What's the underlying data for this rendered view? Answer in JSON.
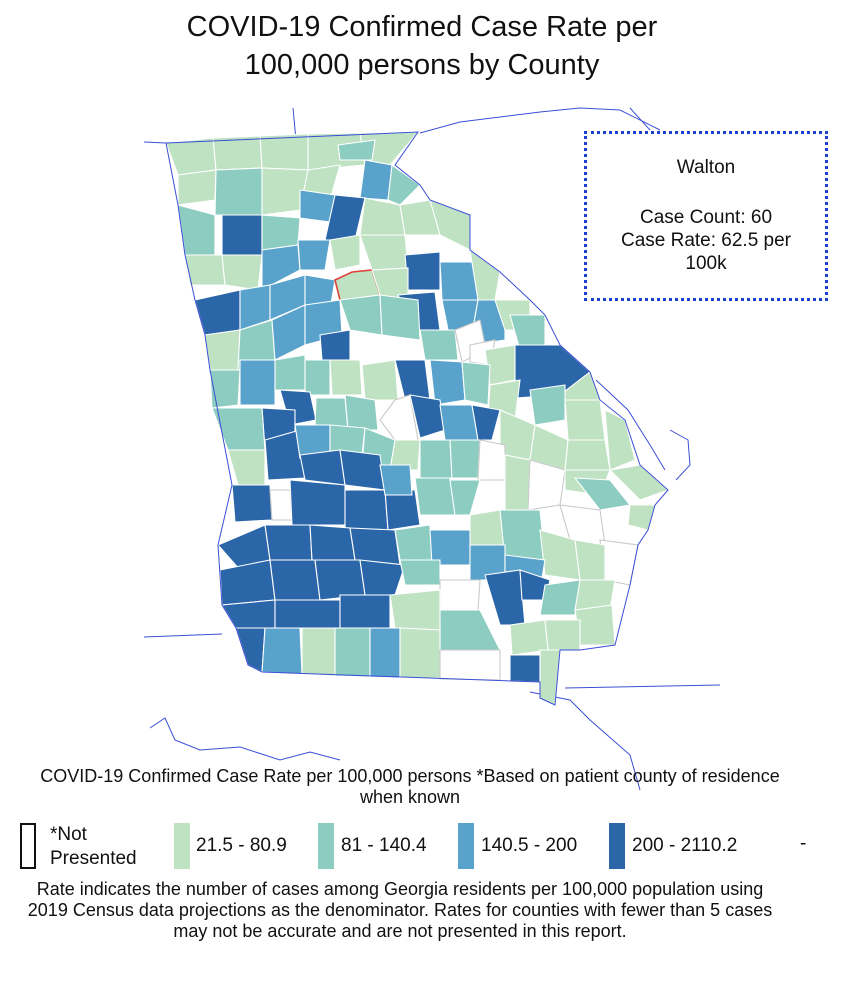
{
  "title_line1": "COVID-19 Confirmed Case Rate per",
  "title_line2": "100,000 persons by County",
  "tooltip": {
    "county": "Walton",
    "case_count": "Case Count: 60",
    "case_rate": "Case Rate: 62.5 per 100k"
  },
  "legend": {
    "title": "COVID-19 Confirmed Case Rate per 100,000 persons *Based on patient county of residence when known",
    "items": [
      {
        "label": "*Not Presented",
        "color": "#ffffff"
      },
      {
        "label": "21.5 - 80.9",
        "color": "#bfe2c3"
      },
      {
        "label": "81 - 140.4",
        "color": "#8cccc1"
      },
      {
        "label": "140.5 - 200",
        "color": "#58a2cc"
      },
      {
        "label": "200 - 2110.2",
        "color": "#2b66a9"
      }
    ],
    "trailing": "-"
  },
  "footnote": "Rate indicates the number of cases among Georgia residents per 100,000 population using 2019 Census data projections as the denominator. Rates for counties with fewer than 5 cases may not be accurate and are not presented in this report.",
  "colors": {
    "outline": "#3b4fd6",
    "highlight": "#e0403a",
    "tooltip_border": "#1d3fd0"
  }
}
